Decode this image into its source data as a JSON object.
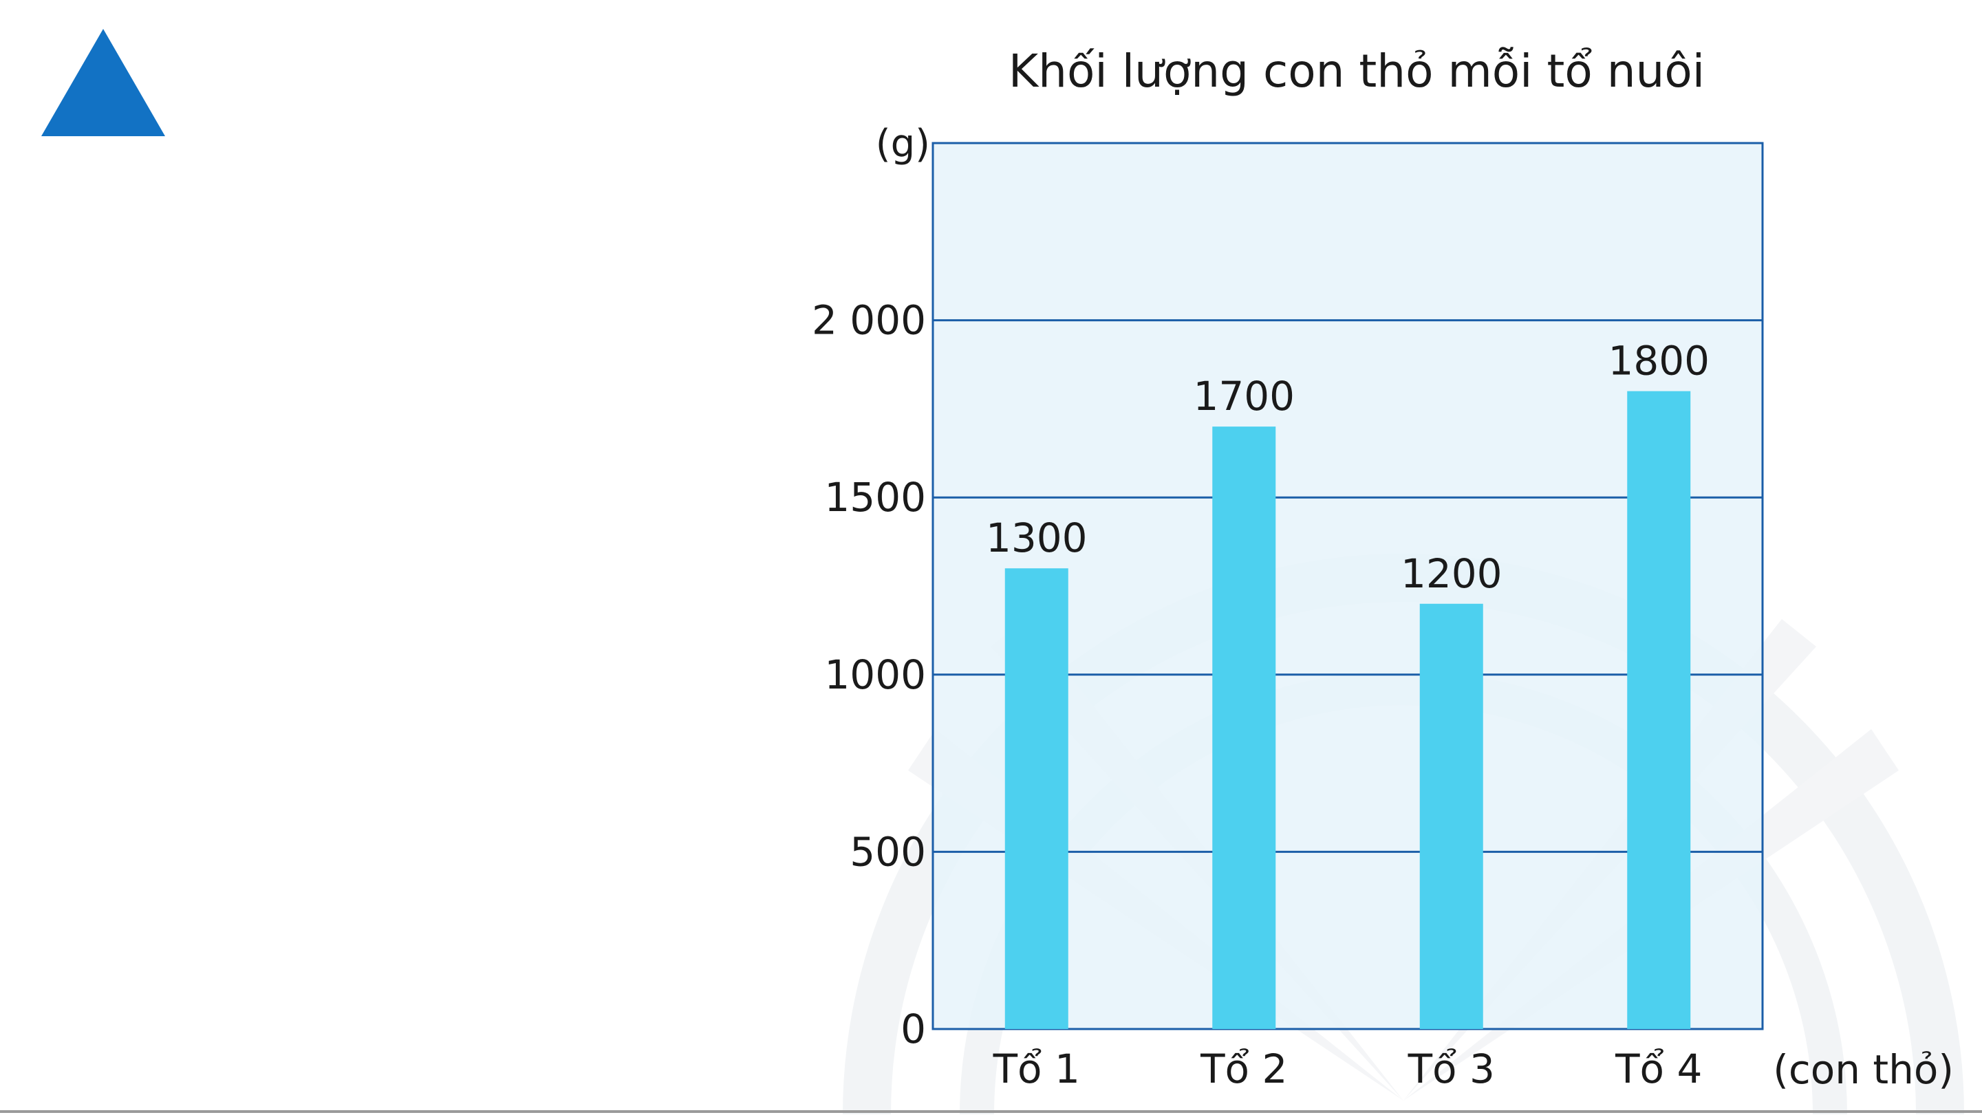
{
  "slide": {
    "marker_icon": "blue-triangle-icon",
    "marker_color": "#1272c4"
  },
  "chart_data": {
    "type": "bar",
    "title": "Khối lượng con thỏ mỗi tổ nuôi",
    "ylabel": "(g)",
    "xlabel": "(con thỏ)",
    "categories": [
      "Tổ 1",
      "Tổ 2",
      "Tổ 3",
      "Tổ 4"
    ],
    "values": [
      1300,
      1700,
      1200,
      1800
    ],
    "data_labels": [
      "1300",
      "1700",
      "1200",
      "1800"
    ],
    "yticks": [
      0,
      500,
      1000,
      1500,
      2000
    ],
    "ytick_labels": [
      "0",
      "500",
      "1000",
      "1500",
      "2 000"
    ],
    "ylim": [
      0,
      2500
    ],
    "grid": true,
    "legend": "none",
    "colors": {
      "bar": "#4dd0ef",
      "plot_background": "#e6f3fa",
      "grid_line": "#1b5ea8",
      "frame": "#1b5ea8"
    }
  }
}
